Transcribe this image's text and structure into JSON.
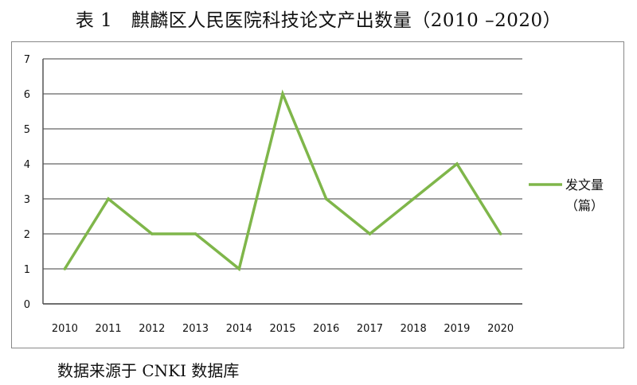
{
  "title": "表 1　麒麟区人民医院科技论文产出数量（2010 –2020）",
  "source_note": "数据来源于 CNKI 数据库",
  "colors": {
    "series": "#7fb64a",
    "grid": "#7f7f7f",
    "axis": "#555555"
  },
  "chart_data": {
    "type": "line",
    "categories": [
      "2010",
      "2011",
      "2012",
      "2013",
      "2014",
      "2015",
      "2016",
      "2017",
      "2018",
      "2019",
      "2020"
    ],
    "series": [
      {
        "name": "发文量",
        "values": [
          1,
          3,
          2,
          2,
          1,
          6,
          3,
          2,
          3,
          4,
          2
        ]
      }
    ],
    "legend_lines": [
      "发文量",
      "（篇）"
    ],
    "ylim": [
      0,
      7
    ],
    "yticks": [
      0,
      1,
      2,
      3,
      4,
      5,
      6,
      7
    ],
    "grid": true,
    "legend_position": "right"
  }
}
